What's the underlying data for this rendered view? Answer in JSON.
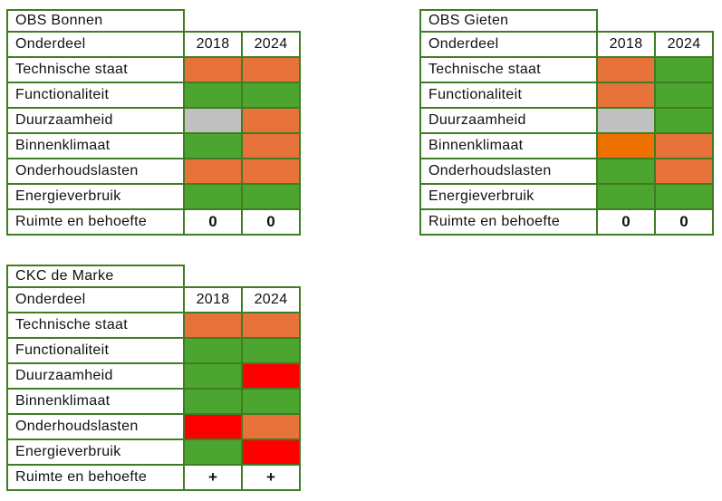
{
  "colors": {
    "border_green": "#3E7D23",
    "green": "#4CA52E",
    "orange": "#E8733A",
    "orange_dark": "#EE7100",
    "gray": "#C0C0C0",
    "red": "#FF0000"
  },
  "columns": {
    "component": "Onderdeel",
    "year1": "2018",
    "year2": "2024"
  },
  "tables": [
    {
      "title": "OBS Bonnen",
      "rows": [
        {
          "label": "Technische staat",
          "values": [
            "orange",
            "orange"
          ]
        },
        {
          "label": "Functionaliteit",
          "values": [
            "green",
            "green"
          ]
        },
        {
          "label": "Duurzaamheid",
          "values": [
            "gray",
            "orange"
          ]
        },
        {
          "label": "Binnenklimaat",
          "values": [
            "green",
            "orange"
          ]
        },
        {
          "label": "Onderhoudslasten",
          "values": [
            "orange",
            "orange"
          ]
        },
        {
          "label": "Energieverbruik",
          "values": [
            "green",
            "green"
          ]
        },
        {
          "label": "Ruimte en behoefte",
          "values": [
            {
              "text": "0"
            },
            {
              "text": "0"
            }
          ]
        }
      ]
    },
    {
      "title": "OBS Gieten",
      "rows": [
        {
          "label": "Technische staat",
          "values": [
            "orange",
            "green"
          ]
        },
        {
          "label": "Functionaliteit",
          "values": [
            "orange",
            "green"
          ]
        },
        {
          "label": "Duurzaamheid",
          "values": [
            "gray",
            "green"
          ]
        },
        {
          "label": "Binnenklimaat",
          "values": [
            "orange_dark",
            "orange"
          ]
        },
        {
          "label": "Onderhoudslasten",
          "values": [
            "green",
            "orange"
          ]
        },
        {
          "label": "Energieverbruik",
          "values": [
            "green",
            "green"
          ]
        },
        {
          "label": "Ruimte en behoefte",
          "values": [
            {
              "text": "0"
            },
            {
              "text": "0"
            }
          ]
        }
      ]
    },
    {
      "title": "CKC de Marke",
      "rows": [
        {
          "label": "Technische staat",
          "values": [
            "orange",
            "orange"
          ]
        },
        {
          "label": "Functionaliteit",
          "values": [
            "green",
            "green"
          ]
        },
        {
          "label": "Duurzaamheid",
          "values": [
            "green",
            "red"
          ]
        },
        {
          "label": "Binnenklimaat",
          "values": [
            "green",
            "green"
          ]
        },
        {
          "label": "Onderhoudslasten",
          "values": [
            "red",
            "orange"
          ]
        },
        {
          "label": "Energieverbruik",
          "values": [
            "green",
            "red"
          ]
        },
        {
          "label": "Ruimte en behoefte",
          "values": [
            {
              "text": "+"
            },
            {
              "text": "+"
            }
          ]
        }
      ]
    }
  ]
}
